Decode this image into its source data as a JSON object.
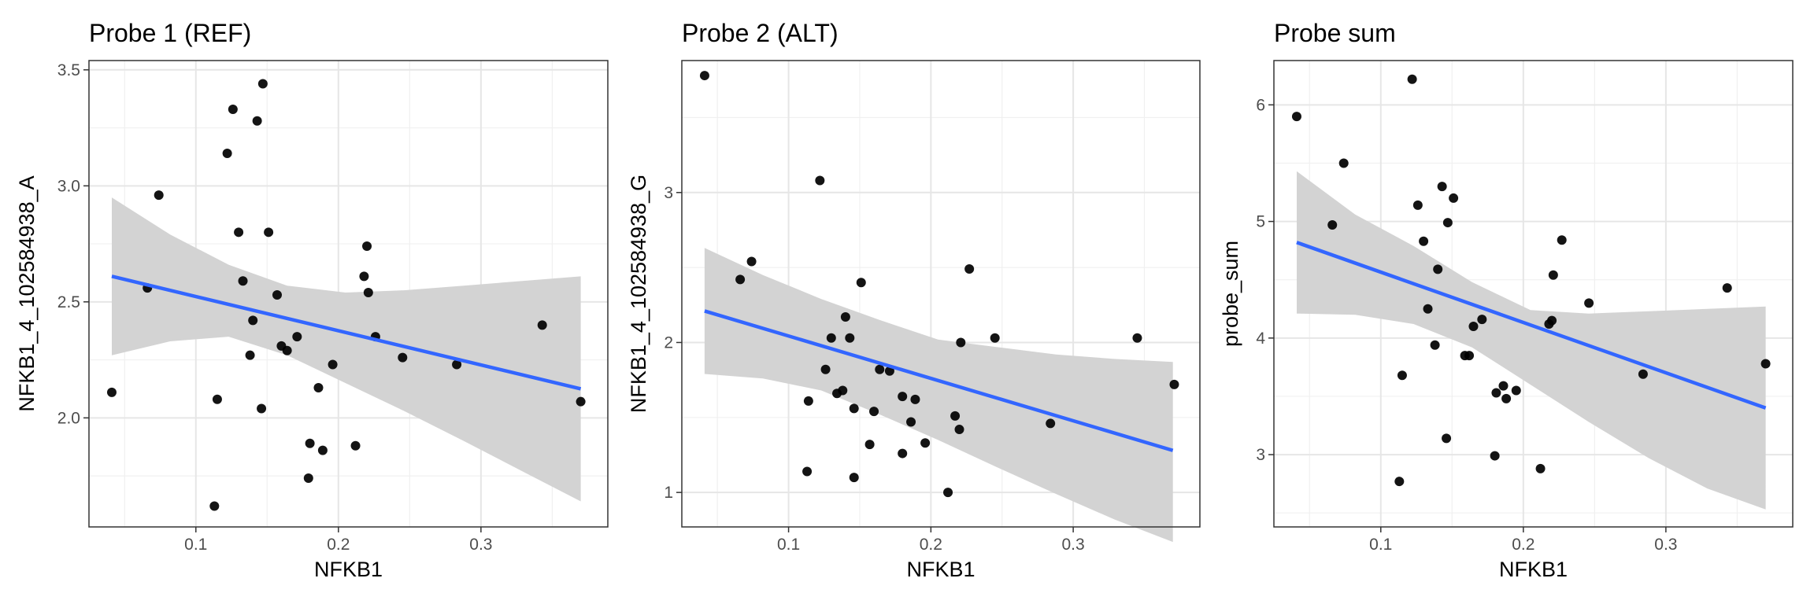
{
  "chart_data": [
    {
      "type": "scatter",
      "title": "Probe 1 (REF)",
      "xlabel": "NFKB1",
      "ylabel": "NFKB1_4_102584938_A",
      "xlim": [
        0.025,
        0.389
      ],
      "ylim": [
        1.53,
        3.54
      ],
      "x_ticks": [
        0.1,
        0.2,
        0.3
      ],
      "x_tick_labels": [
        "0.1",
        "0.2",
        "0.3"
      ],
      "y_ticks": [
        2.0,
        2.5,
        3.0,
        3.5
      ],
      "y_tick_labels": [
        "2.0",
        "2.5",
        "3.0",
        "3.5"
      ],
      "grid": true,
      "points": [
        {
          "x": 0.041,
          "y": 2.11
        },
        {
          "x": 0.066,
          "y": 2.56
        },
        {
          "x": 0.074,
          "y": 2.96
        },
        {
          "x": 0.113,
          "y": 1.62
        },
        {
          "x": 0.115,
          "y": 2.08
        },
        {
          "x": 0.122,
          "y": 3.14
        },
        {
          "x": 0.126,
          "y": 3.33
        },
        {
          "x": 0.13,
          "y": 2.8
        },
        {
          "x": 0.133,
          "y": 2.59
        },
        {
          "x": 0.138,
          "y": 2.27
        },
        {
          "x": 0.14,
          "y": 2.42
        },
        {
          "x": 0.143,
          "y": 3.28
        },
        {
          "x": 0.146,
          "y": 2.04
        },
        {
          "x": 0.147,
          "y": 3.44
        },
        {
          "x": 0.151,
          "y": 2.8
        },
        {
          "x": 0.157,
          "y": 2.53
        },
        {
          "x": 0.16,
          "y": 2.31
        },
        {
          "x": 0.164,
          "y": 2.29
        },
        {
          "x": 0.171,
          "y": 2.35
        },
        {
          "x": 0.179,
          "y": 1.74
        },
        {
          "x": 0.18,
          "y": 1.89
        },
        {
          "x": 0.186,
          "y": 2.13
        },
        {
          "x": 0.189,
          "y": 1.86
        },
        {
          "x": 0.196,
          "y": 2.23
        },
        {
          "x": 0.212,
          "y": 1.88
        },
        {
          "x": 0.218,
          "y": 2.61
        },
        {
          "x": 0.22,
          "y": 2.74
        },
        {
          "x": 0.221,
          "y": 2.54
        },
        {
          "x": 0.226,
          "y": 2.35
        },
        {
          "x": 0.245,
          "y": 2.26
        },
        {
          "x": 0.283,
          "y": 2.23
        },
        {
          "x": 0.343,
          "y": 2.4
        },
        {
          "x": 0.37,
          "y": 2.07
        }
      ],
      "fit_line": {
        "x": [
          0.041,
          0.37
        ],
        "y": [
          2.61,
          2.125
        ],
        "color": "#3366FF"
      },
      "ribbon": {
        "x": [
          0.041,
          0.082,
          0.123,
          0.164,
          0.205,
          0.246,
          0.288,
          0.329,
          0.37
        ],
        "lower": [
          2.27,
          2.33,
          2.35,
          2.27,
          2.15,
          2.03,
          1.9,
          1.77,
          1.64
        ],
        "upper": [
          2.95,
          2.79,
          2.66,
          2.57,
          2.54,
          2.55,
          2.57,
          2.59,
          2.61
        ],
        "color": "#d3d3d3"
      }
    },
    {
      "type": "scatter",
      "title": "Probe 2 (ALT)",
      "xlabel": "NFKB1",
      "ylabel": "NFKB1_4_102584938_G",
      "xlim": [
        0.025,
        0.389
      ],
      "ylim": [
        0.77,
        3.88
      ],
      "x_ticks": [
        0.1,
        0.2,
        0.3
      ],
      "x_tick_labels": [
        "0.1",
        "0.2",
        "0.3"
      ],
      "y_ticks": [
        1,
        2,
        3
      ],
      "y_tick_labels": [
        "1",
        "2",
        "3"
      ],
      "grid": true,
      "points": [
        {
          "x": 0.041,
          "y": 3.78
        },
        {
          "x": 0.066,
          "y": 2.42
        },
        {
          "x": 0.074,
          "y": 2.54
        },
        {
          "x": 0.113,
          "y": 1.14
        },
        {
          "x": 0.114,
          "y": 1.61
        },
        {
          "x": 0.122,
          "y": 3.08
        },
        {
          "x": 0.126,
          "y": 1.82
        },
        {
          "x": 0.13,
          "y": 2.03
        },
        {
          "x": 0.134,
          "y": 1.66
        },
        {
          "x": 0.138,
          "y": 1.68
        },
        {
          "x": 0.14,
          "y": 2.17
        },
        {
          "x": 0.143,
          "y": 2.03
        },
        {
          "x": 0.146,
          "y": 1.1
        },
        {
          "x": 0.146,
          "y": 1.56
        },
        {
          "x": 0.151,
          "y": 2.4
        },
        {
          "x": 0.157,
          "y": 1.32
        },
        {
          "x": 0.16,
          "y": 1.54
        },
        {
          "x": 0.164,
          "y": 1.82
        },
        {
          "x": 0.171,
          "y": 1.81
        },
        {
          "x": 0.18,
          "y": 1.26
        },
        {
          "x": 0.18,
          "y": 1.64
        },
        {
          "x": 0.186,
          "y": 1.47
        },
        {
          "x": 0.189,
          "y": 1.62
        },
        {
          "x": 0.196,
          "y": 1.33
        },
        {
          "x": 0.212,
          "y": 1.0
        },
        {
          "x": 0.217,
          "y": 1.51
        },
        {
          "x": 0.22,
          "y": 1.42
        },
        {
          "x": 0.221,
          "y": 2.0
        },
        {
          "x": 0.227,
          "y": 2.49
        },
        {
          "x": 0.245,
          "y": 2.03
        },
        {
          "x": 0.284,
          "y": 1.46
        },
        {
          "x": 0.345,
          "y": 2.03
        },
        {
          "x": 0.371,
          "y": 1.72
        }
      ],
      "fit_line": {
        "x": [
          0.041,
          0.37
        ],
        "y": [
          2.21,
          1.28
        ],
        "color": "#3366FF"
      },
      "ribbon": {
        "x": [
          0.041,
          0.082,
          0.123,
          0.164,
          0.205,
          0.246,
          0.288,
          0.329,
          0.37
        ],
        "lower": [
          1.79,
          1.76,
          1.68,
          1.52,
          1.35,
          1.17,
          0.99,
          0.82,
          0.67
        ],
        "upper": [
          2.63,
          2.45,
          2.29,
          2.15,
          2.02,
          1.97,
          1.92,
          1.89,
          1.87
        ],
        "color": "#d3d3d3"
      }
    },
    {
      "type": "scatter",
      "title": "Probe sum",
      "xlabel": "NFKB1",
      "ylabel": "probe_sum",
      "xlim": [
        0.025,
        0.389
      ],
      "ylim": [
        2.38,
        6.38
      ],
      "x_ticks": [
        0.1,
        0.2,
        0.3
      ],
      "x_tick_labels": [
        "0.1",
        "0.2",
        "0.3"
      ],
      "y_ticks": [
        3,
        4,
        5,
        6
      ],
      "y_tick_labels": [
        "3",
        "4",
        "5",
        "6"
      ],
      "grid": true,
      "points": [
        {
          "x": 0.041,
          "y": 5.9
        },
        {
          "x": 0.066,
          "y": 4.97
        },
        {
          "x": 0.074,
          "y": 5.5
        },
        {
          "x": 0.113,
          "y": 2.77
        },
        {
          "x": 0.115,
          "y": 3.68
        },
        {
          "x": 0.122,
          "y": 6.22
        },
        {
          "x": 0.126,
          "y": 5.14
        },
        {
          "x": 0.13,
          "y": 4.83
        },
        {
          "x": 0.133,
          "y": 4.25
        },
        {
          "x": 0.138,
          "y": 3.94
        },
        {
          "x": 0.14,
          "y": 4.59
        },
        {
          "x": 0.143,
          "y": 5.3
        },
        {
          "x": 0.146,
          "y": 3.14
        },
        {
          "x": 0.147,
          "y": 4.99
        },
        {
          "x": 0.151,
          "y": 5.2
        },
        {
          "x": 0.159,
          "y": 3.85
        },
        {
          "x": 0.162,
          "y": 3.85
        },
        {
          "x": 0.165,
          "y": 4.1
        },
        {
          "x": 0.171,
          "y": 4.16
        },
        {
          "x": 0.18,
          "y": 2.99
        },
        {
          "x": 0.181,
          "y": 3.53
        },
        {
          "x": 0.186,
          "y": 3.59
        },
        {
          "x": 0.188,
          "y": 3.48
        },
        {
          "x": 0.195,
          "y": 3.55
        },
        {
          "x": 0.212,
          "y": 2.88
        },
        {
          "x": 0.218,
          "y": 4.12
        },
        {
          "x": 0.22,
          "y": 4.15
        },
        {
          "x": 0.221,
          "y": 4.54
        },
        {
          "x": 0.227,
          "y": 4.84
        },
        {
          "x": 0.246,
          "y": 4.3
        },
        {
          "x": 0.284,
          "y": 3.69
        },
        {
          "x": 0.343,
          "y": 4.43
        },
        {
          "x": 0.37,
          "y": 3.78
        }
      ],
      "fit_line": {
        "x": [
          0.041,
          0.37
        ],
        "y": [
          4.82,
          3.4
        ],
        "color": "#3366FF"
      },
      "ribbon": {
        "x": [
          0.041,
          0.082,
          0.123,
          0.164,
          0.205,
          0.246,
          0.288,
          0.329,
          0.37
        ],
        "lower": [
          4.21,
          4.2,
          4.12,
          3.92,
          3.6,
          3.28,
          2.97,
          2.71,
          2.53
        ],
        "upper": [
          5.43,
          5.06,
          4.79,
          4.48,
          4.24,
          4.21,
          4.23,
          4.25,
          4.27
        ],
        "color": "#d3d3d3"
      }
    }
  ]
}
